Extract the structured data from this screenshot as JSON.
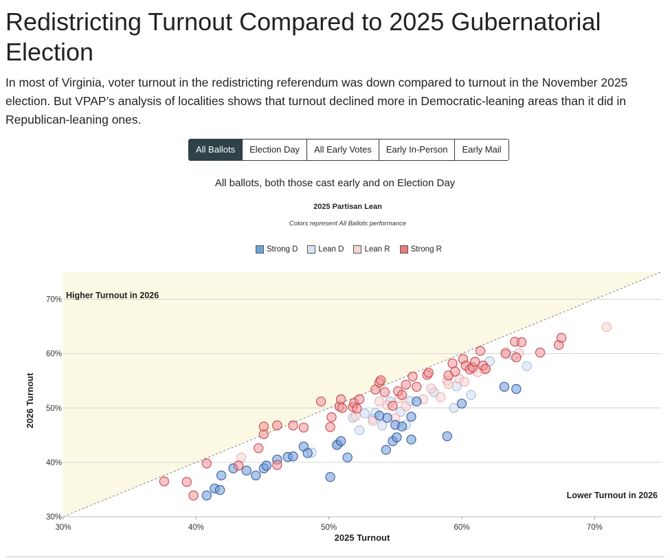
{
  "page": {
    "title": "Redistricting Turnout Compared to 2025 Gubernatorial Election",
    "description": "In most of Virginia, voter turnout in the redistricting referendum was down compared to turnout in the November 2025 election. But VPAP’s analysis of localities shows that turnout declined more in Democratic-leaning areas than it did in Republican-leaning ones."
  },
  "tabs": [
    {
      "label": "All Ballots",
      "active": true
    },
    {
      "label": "Election Day",
      "active": false
    },
    {
      "label": "All Early Votes",
      "active": false
    },
    {
      "label": "Early In-Person",
      "active": false
    },
    {
      "label": "Early Mail",
      "active": false
    }
  ],
  "subtitle": "All ballots, both those cast early and on Election Day",
  "legend": {
    "title": "2025 Partisan Lean",
    "subtitle": "Colors represent All Ballots performance",
    "items": [
      {
        "label": "Strong D",
        "color": "#6ba3d6"
      },
      {
        "label": "Lean D",
        "color": "#d6e4f4"
      },
      {
        "label": "Lean R",
        "color": "#f7d6d6"
      },
      {
        "label": "Strong R",
        "color": "#e97a7e"
      }
    ]
  },
  "colors": {
    "strong_d_fill": "#6a9ad6",
    "strong_d_stroke": "#2f4f9a",
    "lean_d_fill": "#cddcf0",
    "lean_d_stroke": "#9fb6d8",
    "lean_r_fill": "#f7d3d3",
    "lean_r_stroke": "#eaaaaa",
    "strong_r_fill": "#ee9599",
    "strong_r_stroke": "#c43a42",
    "region": "#fbf8e4"
  },
  "chart_data": {
    "type": "scatter",
    "xlabel": "2025 Turnout",
    "ylabel": "2026 Turnout",
    "xlim": [
      30,
      75
    ],
    "ylim": [
      30,
      75
    ],
    "x_ticks": [
      {
        "value": 30,
        "label": "30%"
      },
      {
        "value": 40,
        "label": "40%"
      },
      {
        "value": 50,
        "label": "50%"
      },
      {
        "value": 60,
        "label": "60%"
      },
      {
        "value": 70,
        "label": "70%"
      }
    ],
    "y_ticks": [
      {
        "value": 30,
        "label": "30%"
      },
      {
        "value": 40,
        "label": "40%"
      },
      {
        "value": 50,
        "label": "50%"
      },
      {
        "value": 60,
        "label": "60%"
      },
      {
        "value": 70,
        "label": "70%"
      }
    ],
    "grid": "horizontal",
    "annotations": {
      "upper": "Higher Turnout in 2026",
      "lower": "Lower Turnout in 2026"
    },
    "reference_line": "y = x",
    "series": [
      {
        "name": "Strong D",
        "points": [
          [
            40.8,
            33.9
          ],
          [
            41.4,
            35.2
          ],
          [
            41.8,
            34.9
          ],
          [
            41.9,
            37.6
          ],
          [
            42.8,
            38.9
          ],
          [
            43.8,
            38.5
          ],
          [
            44.5,
            37.6
          ],
          [
            45.1,
            38.9
          ],
          [
            45.3,
            39.4
          ],
          [
            46.1,
            40.5
          ],
          [
            46.9,
            41.0
          ],
          [
            47.3,
            41.1
          ],
          [
            48.1,
            42.9
          ],
          [
            48.4,
            41.7
          ],
          [
            50.1,
            37.3
          ],
          [
            50.6,
            43.2
          ],
          [
            50.9,
            43.9
          ],
          [
            51.4,
            40.9
          ],
          [
            53.8,
            48.6
          ],
          [
            54.3,
            42.3
          ],
          [
            54.4,
            48.2
          ],
          [
            54.8,
            43.9
          ],
          [
            55.0,
            46.9
          ],
          [
            55.1,
            44.6
          ],
          [
            55.5,
            46.6
          ],
          [
            56.2,
            44.2
          ],
          [
            56.2,
            48.4
          ],
          [
            56.6,
            51.2
          ],
          [
            58.9,
            44.8
          ],
          [
            60.0,
            50.8
          ],
          [
            63.2,
            53.9
          ],
          [
            64.1,
            53.5
          ]
        ]
      },
      {
        "name": "Lean D",
        "points": [
          [
            48.7,
            41.8
          ],
          [
            50.7,
            43.4
          ],
          [
            51.8,
            48.2
          ],
          [
            52.3,
            45.9
          ],
          [
            52.7,
            49.0
          ],
          [
            53.3,
            48.0
          ],
          [
            53.5,
            49.1
          ],
          [
            54.0,
            46.8
          ],
          [
            54.6,
            51.2
          ],
          [
            55.4,
            49.3
          ],
          [
            55.8,
            46.9
          ],
          [
            56.1,
            51.3
          ],
          [
            57.9,
            52.9
          ],
          [
            59.4,
            50.0
          ],
          [
            59.6,
            54.0
          ],
          [
            60.7,
            52.4
          ],
          [
            62.1,
            58.6
          ],
          [
            63.9,
            59.6
          ],
          [
            64.9,
            57.7
          ]
        ]
      },
      {
        "name": "Lean R",
        "points": [
          [
            43.4,
            40.9
          ],
          [
            52.0,
            48.5
          ],
          [
            53.3,
            47.6
          ],
          [
            53.8,
            51.2
          ],
          [
            54.4,
            50.5
          ],
          [
            55.0,
            48.1
          ],
          [
            55.3,
            51.8
          ],
          [
            55.8,
            50.3
          ],
          [
            57.1,
            51.6
          ],
          [
            57.7,
            53.6
          ],
          [
            58.4,
            52.0
          ],
          [
            58.9,
            55.0
          ],
          [
            59.0,
            54.4
          ],
          [
            59.8,
            55.4
          ],
          [
            60.2,
            54.8
          ],
          [
            60.9,
            57.3
          ],
          [
            61.2,
            56.6
          ],
          [
            61.7,
            57.1
          ],
          [
            63.3,
            60.3
          ],
          [
            64.3,
            60.1
          ],
          [
            70.9,
            64.9
          ]
        ]
      },
      {
        "name": "Strong R",
        "points": [
          [
            37.6,
            36.5
          ],
          [
            39.3,
            36.4
          ],
          [
            39.8,
            33.9
          ],
          [
            40.8,
            39.8
          ],
          [
            43.2,
            39.4
          ],
          [
            44.7,
            42.6
          ],
          [
            45.1,
            45.2
          ],
          [
            45.1,
            46.6
          ],
          [
            46.1,
            46.8
          ],
          [
            46.1,
            39.5
          ],
          [
            47.3,
            46.8
          ],
          [
            48.1,
            46.4
          ],
          [
            49.4,
            51.2
          ],
          [
            50.1,
            46.5
          ],
          [
            50.2,
            48.3
          ],
          [
            50.8,
            50.3
          ],
          [
            50.9,
            51.6
          ],
          [
            51.0,
            50.0
          ],
          [
            51.8,
            50.2
          ],
          [
            51.9,
            50.9
          ],
          [
            52.1,
            49.9
          ],
          [
            52.3,
            51.6
          ],
          [
            53.5,
            53.4
          ],
          [
            53.8,
            54.7
          ],
          [
            53.9,
            55.1
          ],
          [
            54.2,
            52.9
          ],
          [
            54.8,
            50.4
          ],
          [
            55.2,
            53.1
          ],
          [
            55.5,
            52.4
          ],
          [
            55.8,
            54.3
          ],
          [
            56.3,
            55.8
          ],
          [
            56.6,
            53.9
          ],
          [
            57.4,
            56.1
          ],
          [
            57.5,
            56.5
          ],
          [
            59.0,
            56.0
          ],
          [
            59.3,
            58.2
          ],
          [
            59.5,
            56.7
          ],
          [
            60.1,
            59.0
          ],
          [
            60.3,
            57.8
          ],
          [
            60.6,
            57.1
          ],
          [
            60.8,
            57.5
          ],
          [
            61.0,
            58.5
          ],
          [
            61.4,
            60.5
          ],
          [
            61.6,
            57.8
          ],
          [
            61.8,
            57.2
          ],
          [
            63.3,
            60.0
          ],
          [
            64.0,
            62.2
          ],
          [
            64.5,
            62.1
          ],
          [
            64.1,
            59.3
          ],
          [
            65.9,
            60.2
          ],
          [
            67.3,
            61.6
          ],
          [
            67.5,
            62.9
          ]
        ]
      }
    ]
  }
}
